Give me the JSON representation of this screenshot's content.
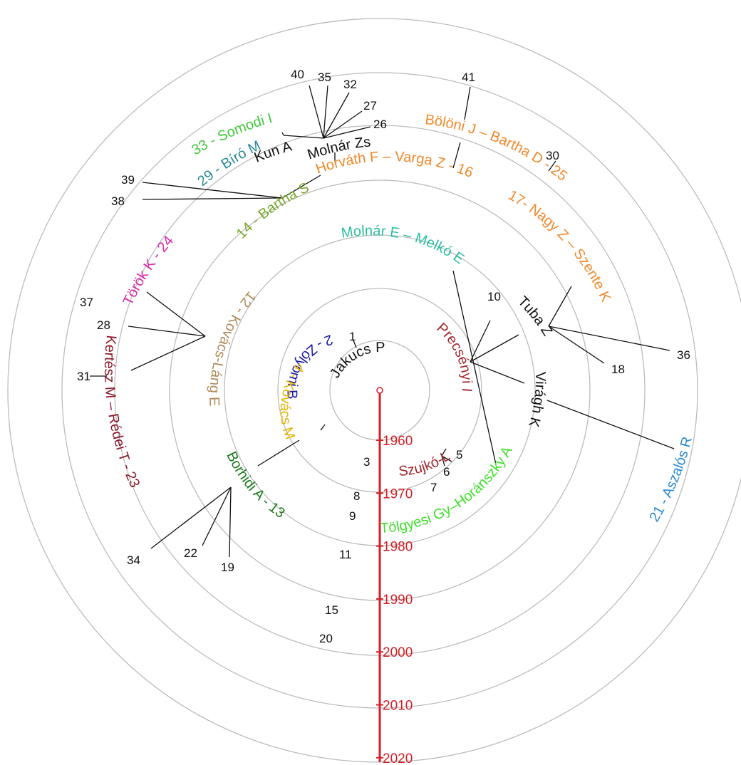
{
  "colors": {
    "timeline": "#d41f26",
    "ring": "#bcbcbc",
    "black": "#111111",
    "blue_dark": "#1a1aa8",
    "gold": "#e8b400",
    "maroon": "#a2262a",
    "green_dark": "#1d7a1d",
    "green_bright": "#3ee02a",
    "teal": "#2bbfa0",
    "orange": "#f0882a",
    "olive": "#78a82a",
    "magenta": "#d42aa8",
    "tan": "#b08a5a",
    "dark_red": "#8a1a2a",
    "sky_blue": "#2a8ad4",
    "steel_teal": "#2a8a96",
    "green": "#3ec83a"
  },
  "timeline": {
    "years": [
      "1960",
      "1970",
      "1980",
      "1990",
      "2000",
      "2010",
      "2020"
    ]
  },
  "arc_labels": [
    {
      "id": "jakucs",
      "text": "Jakucs  P",
      "color": "black"
    },
    {
      "id": "zolyomi",
      "text": "2 - Zólyomi B",
      "color": "blue_dark"
    },
    {
      "id": "kovacs-m",
      "text": "4 - Kovács M",
      "color": "gold"
    },
    {
      "id": "precsenyi",
      "text": "Precsényi I",
      "color": "maroon"
    },
    {
      "id": "szujko",
      "text": "Szujkó-L J",
      "color": "maroon"
    },
    {
      "id": "borhidi",
      "text": "Borhidi A - 13",
      "color": "green_dark"
    },
    {
      "id": "tolgyesi",
      "text": "Tölgyesi Gy–Horánszky A",
      "color": "green_bright"
    },
    {
      "id": "molnar-e",
      "text": "Molnár E – Melkó E",
      "color": "teal"
    },
    {
      "id": "tuba",
      "text": "Tuba Z",
      "color": "black"
    },
    {
      "id": "viragh",
      "text": "Virágh K",
      "color": "black"
    },
    {
      "id": "kovacs-lang",
      "text": "12 - Kovács-Láng E",
      "color": "tan"
    },
    {
      "id": "bartha-s",
      "text": "14 - Bartha S",
      "color": "olive"
    },
    {
      "id": "horvath",
      "text": "Horváth F – Varga Z - 16",
      "color": "orange"
    },
    {
      "id": "nagy",
      "text": "17- Nagy Z – Szente K",
      "color": "orange"
    },
    {
      "id": "boloni",
      "text": "Bölöni J – Bartha D - 25",
      "color": "orange"
    },
    {
      "id": "molnar-zs",
      "text": "Molnár Zs",
      "color": "black"
    },
    {
      "id": "kun",
      "text": "Kun A",
      "color": "black"
    },
    {
      "id": "biro",
      "text": "29 - Bíró M",
      "color": "steel_teal"
    },
    {
      "id": "somodi",
      "text": "33 - Somodi I",
      "color": "green"
    },
    {
      "id": "torok",
      "text": "Török K - 24",
      "color": "magenta"
    },
    {
      "id": "kertesz",
      "text": "Kertész M – Rédei T - 23",
      "color": "dark_red"
    },
    {
      "id": "aszalos",
      "text": "21 - Aszalós R",
      "color": "sky_blue"
    }
  ],
  "numbers": [
    "1",
    "3",
    "5",
    "6",
    "7",
    "8",
    "9",
    "10",
    "11",
    "15",
    "18",
    "19",
    "20",
    "22",
    "26",
    "27",
    "28",
    "30",
    "31",
    "32",
    "34",
    "35",
    "36",
    "37",
    "38",
    "39",
    "40",
    "41"
  ]
}
